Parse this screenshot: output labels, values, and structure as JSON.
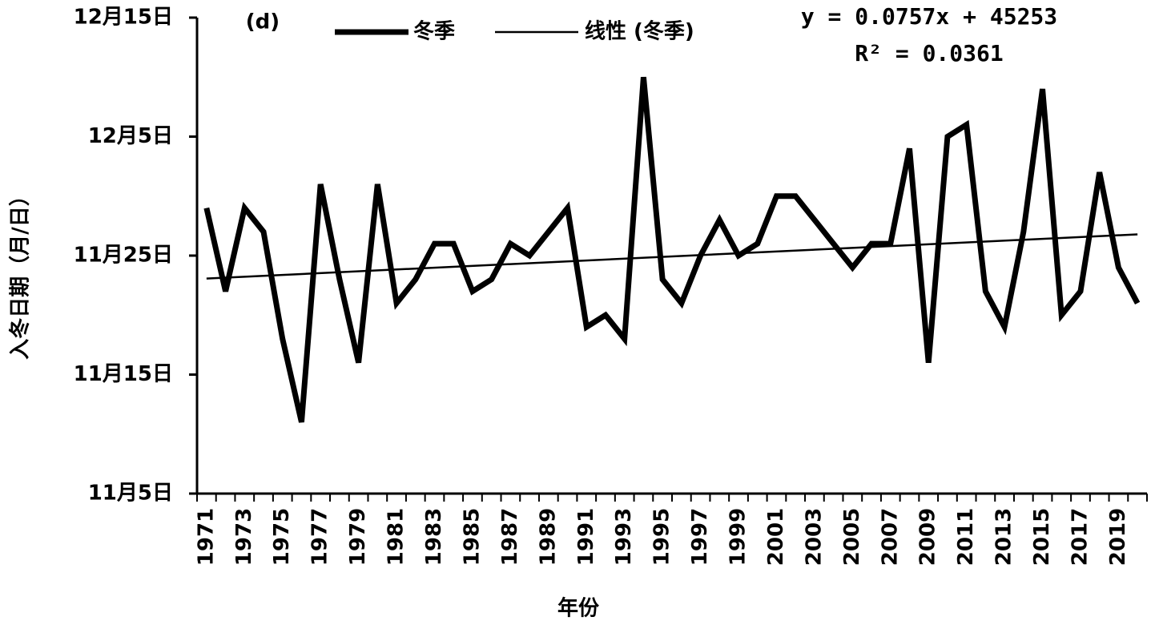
{
  "chart_data": {
    "type": "line",
    "panel_label": "(d)",
    "y_label": "入冬日期（月/日）",
    "x_label": "年份",
    "categories": [
      "1971",
      null,
      "1973",
      null,
      "1975",
      null,
      "1977",
      null,
      "1979",
      null,
      "1981",
      null,
      "1983",
      null,
      "1985",
      null,
      "1987",
      null,
      "1989",
      null,
      "1991",
      null,
      "1993",
      null,
      "1995",
      null,
      "1997",
      null,
      "1999",
      null,
      "2001",
      null,
      "2003",
      null,
      "2005",
      null,
      "2007",
      null,
      "2009",
      null,
      "2011",
      null,
      "2013",
      null,
      "2015",
      null,
      "2017",
      null,
      "2019",
      null
    ],
    "series": [
      {
        "name": "冬季",
        "color": "#000000",
        "values": [
          45259,
          45252,
          45259,
          45257,
          45248,
          45241,
          45261,
          45253,
          45246,
          45261,
          45251,
          45253,
          45256,
          45256,
          45252,
          45253,
          45256,
          45255,
          45257,
          45259,
          45249,
          45250,
          45248,
          45270,
          45253,
          45251,
          45255,
          45258,
          45255,
          45256,
          45260,
          45260,
          45258,
          45256,
          45254,
          45256,
          45256,
          45264,
          45246,
          45265,
          45266,
          45252,
          45249,
          45257,
          45269,
          45250,
          45252,
          45262,
          45254,
          45251
        ]
      }
    ],
    "trend_name": "线性 (冬季)",
    "trend_slope": 0.0757,
    "trend_intercept": 45253,
    "equation": "y = 0.0757x + 45253",
    "r_squared": "R² = 0.0361",
    "ylim": [
      45235,
      45275
    ],
    "yticks": [
      {
        "value": 45235,
        "label": "11月5日"
      },
      {
        "value": 45245,
        "label": "11月15日"
      },
      {
        "value": 45255,
        "label": "11月25日"
      },
      {
        "value": 45265,
        "label": "12月5日"
      },
      {
        "value": 45275,
        "label": "12月15日"
      }
    ],
    "grid": false
  }
}
